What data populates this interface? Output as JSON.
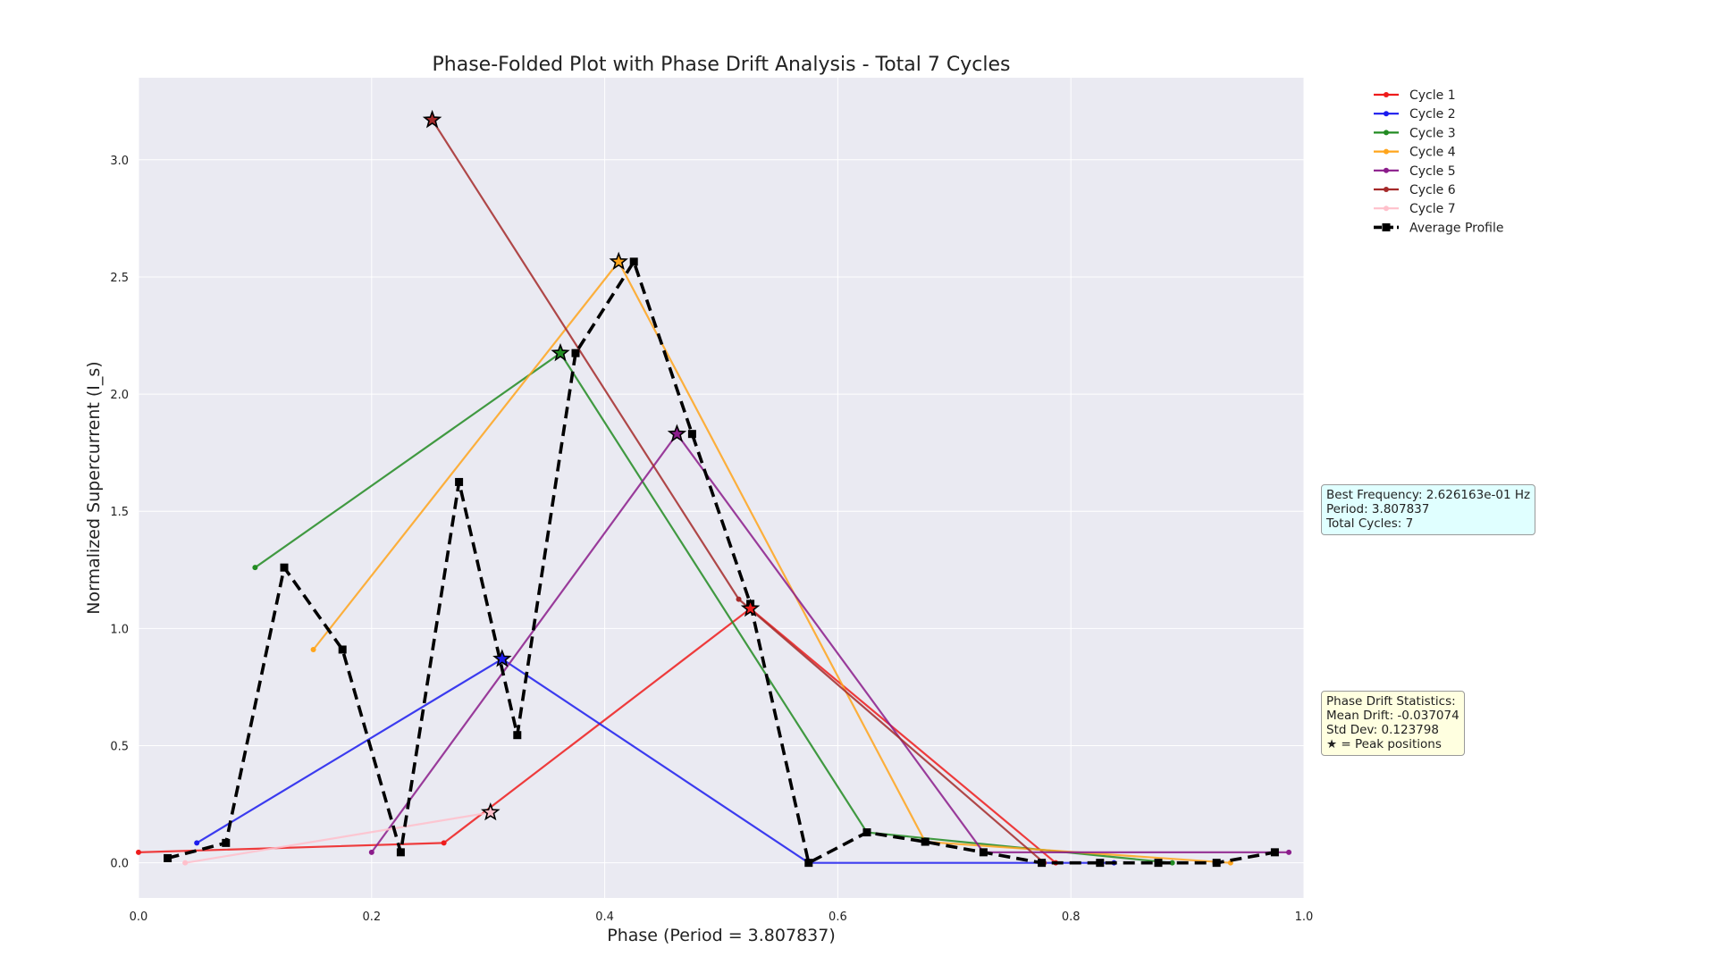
{
  "chart_data": {
    "type": "line",
    "title": "Phase-Folded Plot with Phase Drift Analysis - Total 7 Cycles",
    "xlabel": "Phase (Period = 3.807837)",
    "ylabel": "Normalized Supercurrent (I_s)",
    "xlim": [
      0.0,
      1.0
    ],
    "ylim": [
      -0.15,
      3.35
    ],
    "xticks": [
      "0.0",
      "0.2",
      "0.4",
      "0.6",
      "0.8",
      "1.0"
    ],
    "yticks": [
      "0.0",
      "0.5",
      "1.0",
      "1.5",
      "2.0",
      "2.5",
      "3.0"
    ],
    "grid": true,
    "legend_position": "outside-top-right",
    "series": [
      {
        "name": "Cycle 1",
        "color": "#ee1c1c",
        "x": [
          0.0,
          0.262,
          0.525,
          0.787
        ],
        "y": [
          0.045,
          0.085,
          1.085,
          0.0
        ],
        "peak": [
          0.525,
          1.085
        ]
      },
      {
        "name": "Cycle 2",
        "color": "#1c1cee",
        "x": [
          0.05,
          0.312,
          0.575,
          0.837
        ],
        "y": [
          0.085,
          0.87,
          0.0,
          0.0
        ],
        "peak": [
          0.312,
          0.87
        ]
      },
      {
        "name": "Cycle 3",
        "color": "#228b22",
        "x": [
          0.1,
          0.362,
          0.625,
          0.887
        ],
        "y": [
          1.26,
          2.175,
          0.13,
          0.0
        ],
        "peak": [
          0.362,
          2.175
        ]
      },
      {
        "name": "Cycle 4",
        "color": "#ffa51c",
        "x": [
          0.15,
          0.412,
          0.675,
          0.937
        ],
        "y": [
          0.91,
          2.565,
          0.09,
          0.0
        ],
        "peak": [
          0.412,
          2.565
        ]
      },
      {
        "name": "Cycle 5",
        "color": "#8b1c8b",
        "x": [
          0.2,
          0.462,
          0.725,
          0.987
        ],
        "y": [
          0.045,
          1.83,
          0.045,
          0.045
        ],
        "peak": [
          0.462,
          1.83
        ]
      },
      {
        "name": "Cycle 6",
        "color": "#a52a2a",
        "x": [
          0.252,
          0.515,
          0.777
        ],
        "y": [
          3.17,
          1.125,
          0.0
        ],
        "peak": [
          0.252,
          3.17
        ]
      },
      {
        "name": "Cycle 7",
        "color": "#ffc0cb",
        "x": [
          0.04,
          0.302
        ],
        "y": [
          0.0,
          0.215
        ],
        "peak": [
          0.302,
          0.215
        ]
      }
    ],
    "average_profile": {
      "name": "Average Profile",
      "color": "#000000",
      "x": [
        0.025,
        0.075,
        0.125,
        0.175,
        0.225,
        0.275,
        0.325,
        0.375,
        0.425,
        0.475,
        0.525,
        0.575,
        0.625,
        0.675,
        0.725,
        0.775,
        0.825,
        0.875,
        0.925,
        0.975
      ],
      "y": [
        0.02,
        0.085,
        1.26,
        0.91,
        0.045,
        1.625,
        0.545,
        2.175,
        2.565,
        1.83,
        1.105,
        0.0,
        0.13,
        0.09,
        0.045,
        0.0,
        0.0,
        0.0,
        0.0,
        0.045
      ]
    },
    "annotations": {
      "frequency_box": [
        "Best Frequency: 2.626163e-01 Hz",
        "Period: 3.807837",
        "Total Cycles: 7"
      ],
      "drift_box": [
        "Phase Drift Statistics:",
        "Mean Drift: -0.037074",
        "Std Dev: 0.123798",
        "★ = Peak positions"
      ]
    }
  }
}
